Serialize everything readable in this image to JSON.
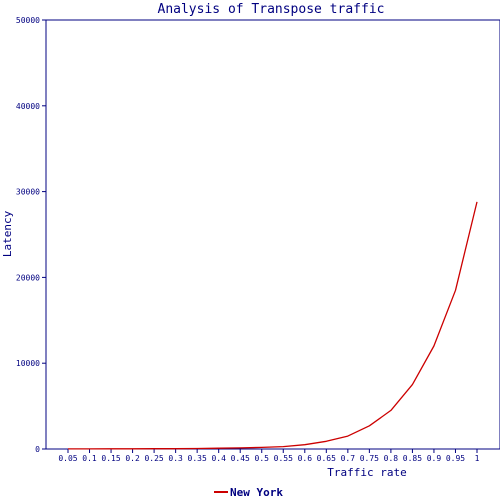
{
  "chart_data": {
    "type": "line",
    "title": "Analysis of Transpose traffic",
    "xlabel": "Traffic rate",
    "ylabel": "Latency",
    "x": [
      0.05,
      0.1,
      0.15,
      0.2,
      0.25,
      0.3,
      0.35,
      0.4,
      0.45,
      0.5,
      0.55,
      0.6,
      0.65,
      0.7,
      0.75,
      0.8,
      0.85,
      0.9,
      0.95,
      1
    ],
    "x_tick_labels": [
      "0.05",
      "0.1",
      "0.15",
      "0.2",
      "0.25",
      "0.3",
      "0.35",
      "0.4",
      "0.45",
      "0.5",
      "0.55",
      "0.6",
      "0.65",
      "0.7",
      "0.75",
      "0.8",
      "0.85",
      "0.9",
      "0.95",
      "1"
    ],
    "ylim": [
      0,
      50000
    ],
    "y_ticks": [
      0,
      10000,
      20000,
      30000,
      40000,
      50000
    ],
    "y_tick_labels": [
      "0",
      "10000",
      "20000",
      "30000",
      "40000",
      "50000"
    ],
    "grid": false,
    "legend_position": "bottom-center",
    "series": [
      {
        "name": "New York",
        "color": "#cc0000",
        "values": [
          10,
          15,
          20,
          25,
          30,
          40,
          60,
          90,
          130,
          190,
          280,
          500,
          900,
          1500,
          2700,
          4500,
          7500,
          12000,
          18500,
          28800
        ]
      }
    ]
  }
}
